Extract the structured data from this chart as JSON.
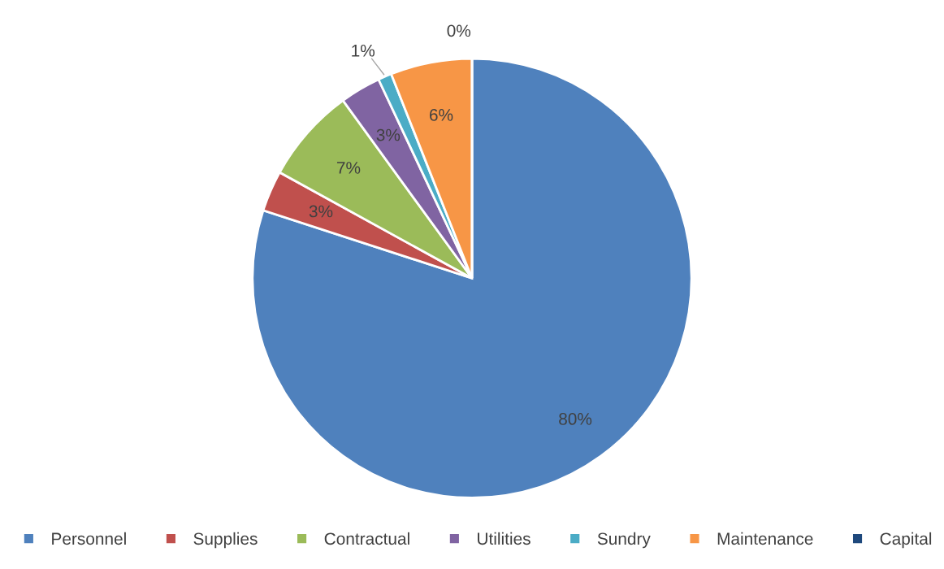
{
  "chart_data": {
    "type": "pie",
    "categories": [
      "Personnel",
      "Supplies",
      "Contractual",
      "Utilities",
      "Sundry",
      "Maintenance",
      "Capital"
    ],
    "values": [
      80,
      3,
      7,
      3,
      1,
      6,
      0
    ],
    "value_labels": [
      "80%",
      "3%",
      "7%",
      "3%",
      "1%",
      "6%",
      "0%"
    ],
    "colors": [
      "#4f81bd",
      "#c0504d",
      "#9bbb59",
      "#8064a2",
      "#4bacc6",
      "#f79646",
      "#1f497d"
    ],
    "legend": "bottom"
  }
}
